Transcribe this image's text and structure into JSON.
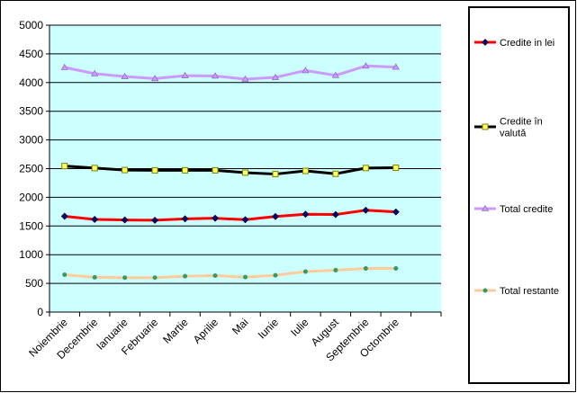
{
  "chart_data": {
    "type": "line",
    "title": "",
    "xlabel": "",
    "ylabel": "",
    "categories": [
      "Noiembrie",
      "Decembrie",
      "Ianuarie",
      "Februarie",
      "Martie",
      "Aprilie",
      "Mai",
      "Iunie",
      "Iulie",
      "August",
      "Septembrie",
      "Octombrie"
    ],
    "ylim": [
      0,
      5000
    ],
    "ytick_step": 500,
    "grid": true,
    "plot_background": "#ccffff",
    "legend_position": "right",
    "series": [
      {
        "name": "Credite in lei",
        "color": "#ff0000",
        "marker": "diamond",
        "marker_color": "#000080",
        "values": [
          1670,
          1615,
          1605,
          1600,
          1625,
          1635,
          1610,
          1665,
          1705,
          1700,
          1775,
          1745
        ]
      },
      {
        "name": "Credite în valută",
        "color": "#000000",
        "marker": "square",
        "marker_color": "#ffff66",
        "values": [
          2545,
          2510,
          2475,
          2470,
          2470,
          2470,
          2430,
          2405,
          2460,
          2410,
          2510,
          2515
        ]
      },
      {
        "name": "Total credite",
        "color": "#cc99ff",
        "marker": "triangle",
        "marker_color": "#cc99ff",
        "values": [
          4265,
          4155,
          4105,
          4070,
          4120,
          4115,
          4060,
          4090,
          4210,
          4125,
          4290,
          4270
        ]
      },
      {
        "name": "Total restante",
        "color": "#ffcc99",
        "marker": "dot",
        "marker_color": "#339966",
        "values": [
          650,
          605,
          600,
          600,
          625,
          635,
          610,
          640,
          705,
          730,
          760,
          760
        ]
      }
    ]
  }
}
